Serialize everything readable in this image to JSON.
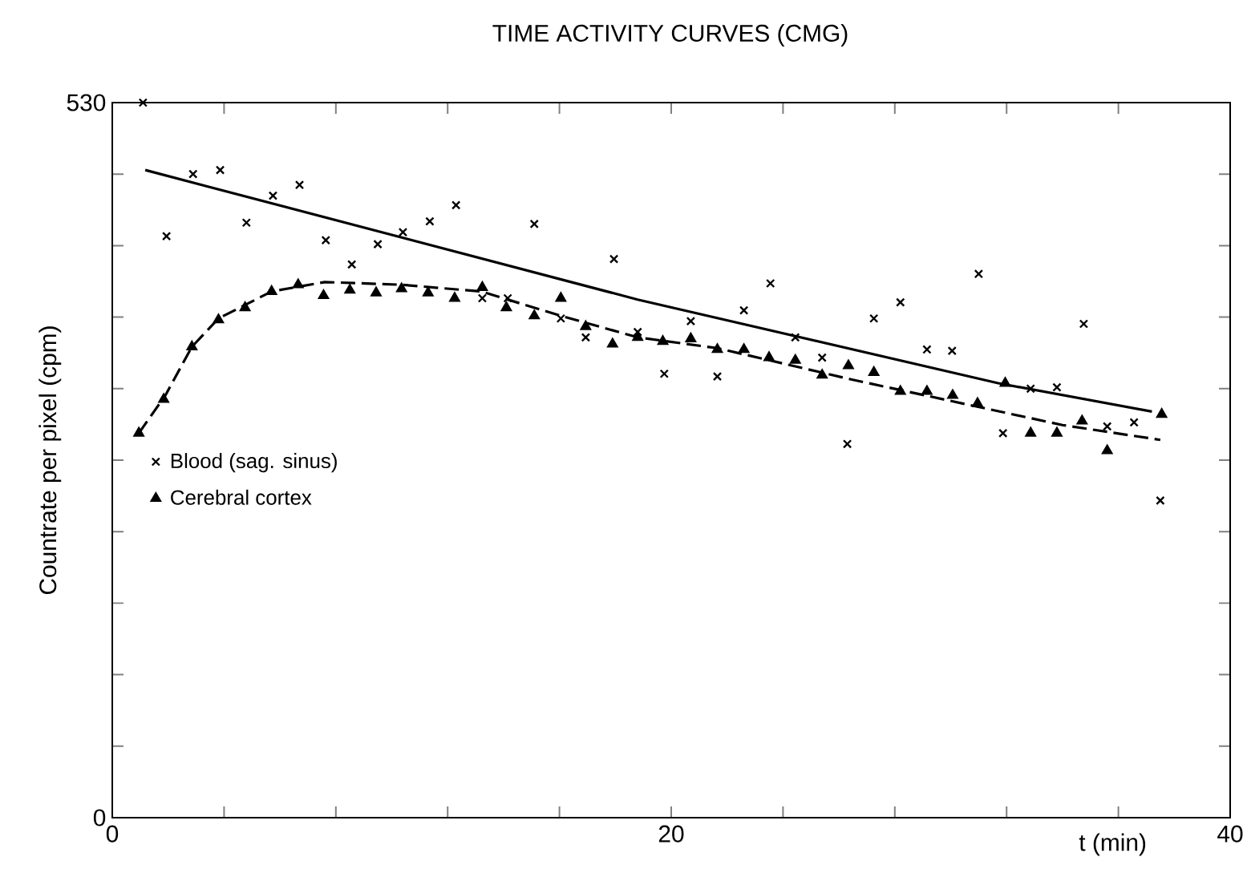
{
  "chart_data": {
    "type": "scatter",
    "title": "TIME ACTIVITY CURVES (CMG)",
    "xlabel": "t (min)",
    "ylabel": "Countrate per pixel (cpm)",
    "xlim": [
      0,
      40
    ],
    "ylim": [
      0,
      530
    ],
    "xticks": [
      0,
      {
        "value": 4,
        "label": null
      },
      {
        "value": 8,
        "label": null
      },
      {
        "value": 12,
        "label": null
      },
      {
        "value": 16,
        "label": null
      },
      20,
      {
        "value": 24,
        "label": null
      },
      {
        "value": 28,
        "label": null
      },
      {
        "value": 32,
        "label": null
      },
      {
        "value": 36,
        "label": null
      },
      40
    ],
    "yticks": [
      0,
      {
        "value": 53,
        "label": null
      },
      {
        "value": 106,
        "label": null
      },
      {
        "value": 159,
        "label": null
      },
      {
        "value": 212,
        "label": null
      },
      {
        "value": 265,
        "label": null
      },
      {
        "value": 318,
        "label": null
      },
      {
        "value": 371,
        "label": null
      },
      {
        "value": 424,
        "label": null
      },
      {
        "value": 477,
        "label": null
      },
      530
    ],
    "legend": "left",
    "grid": false,
    "series": [
      {
        "name": "Blood (sag. sinus)",
        "marker": "cross",
        "color": "#000000",
        "x": [
          1.1,
          1.94,
          2.89,
          3.86,
          4.8,
          5.75,
          6.7,
          7.64,
          8.57,
          9.5,
          10.4,
          11.36,
          12.3,
          13.24,
          14.15,
          15.1,
          16.05,
          16.94,
          17.95,
          18.8,
          19.75,
          20.7,
          21.65,
          22.6,
          23.55,
          24.44,
          25.4,
          26.3,
          27.25,
          28.2,
          29.15,
          30.05,
          31.0,
          31.87,
          32.86,
          33.8,
          34.76,
          35.6,
          36.56,
          37.5
        ],
        "values": [
          530,
          431,
          477,
          480,
          441,
          461,
          469,
          428,
          410,
          425,
          434,
          442,
          454,
          385,
          385,
          440,
          370,
          356,
          414,
          360,
          329,
          368,
          327,
          376,
          396,
          356,
          341,
          277,
          370,
          382,
          347,
          346,
          403,
          285,
          318,
          319,
          366,
          290,
          293,
          235
        ]
      },
      {
        "name": "Cerebral cortex",
        "marker": "triangle",
        "color": "#000000",
        "x": [
          0.95,
          1.84,
          2.85,
          3.8,
          4.75,
          5.7,
          6.65,
          7.56,
          8.5,
          9.44,
          10.35,
          11.3,
          12.25,
          13.24,
          14.1,
          15.1,
          16.05,
          16.94,
          17.9,
          18.8,
          19.7,
          20.7,
          21.65,
          22.6,
          23.5,
          24.44,
          25.4,
          26.34,
          27.25,
          28.2,
          29.15,
          30.07,
          30.96,
          31.95,
          32.86,
          33.8,
          34.7,
          35.6,
          37.55
        ],
        "values": [
          285,
          310,
          349,
          369,
          378,
          390,
          395,
          387,
          391,
          389,
          392,
          389,
          385,
          393,
          378,
          372,
          385,
          364,
          351,
          356,
          353,
          355,
          347,
          347,
          341,
          339,
          328,
          335,
          330,
          316,
          316,
          313,
          307,
          322,
          285,
          285,
          294,
          272,
          299
        ]
      },
      {
        "type": "line",
        "marker": "none",
        "line_style": "solid",
        "color": "#000000",
        "x": [
          1.18,
          18.8,
          31.7,
          37.2
        ],
        "values": [
          480,
          384,
          322,
          301
        ]
      },
      {
        "type": "line",
        "marker": "none",
        "line_style": "dashed",
        "color": "#000000",
        "x": [
          0.95,
          1.9,
          2.85,
          3.8,
          5.7,
          7.6,
          10.35,
          13.2,
          16.05,
          18.8,
          21.65,
          26.4,
          34,
          37.5
        ],
        "values": [
          285,
          313,
          349,
          370,
          390,
          397,
          395,
          390,
          372,
          356,
          348,
          325,
          291,
          280
        ]
      }
    ]
  }
}
